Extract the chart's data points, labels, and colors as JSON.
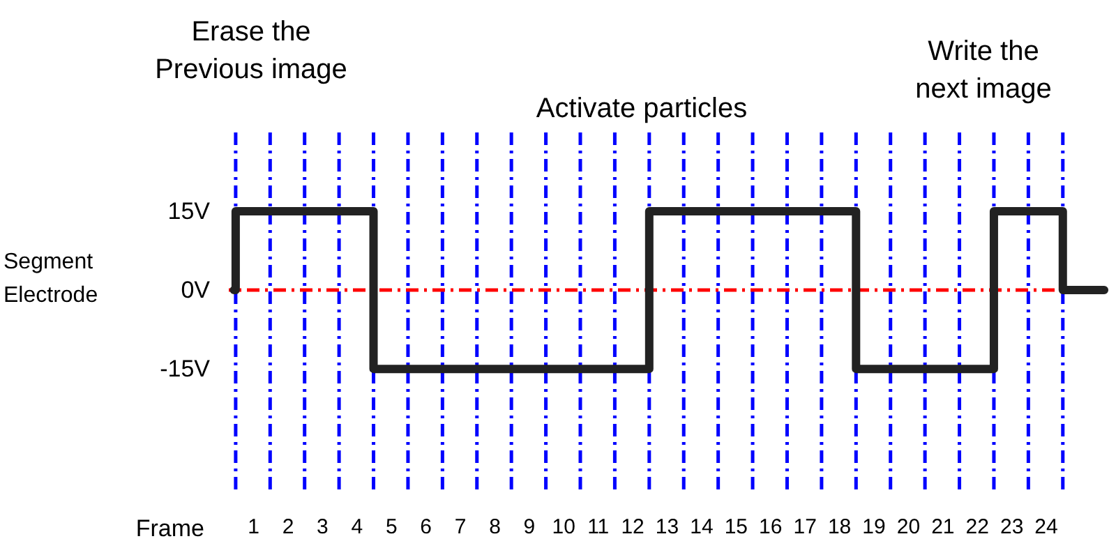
{
  "chart_data": {
    "type": "step",
    "xlabel": "Frame",
    "ylabel": "Segment Electrode",
    "annotations": [
      "Erase the\nPrevious image",
      "Activate particles",
      "Write the\nnext image"
    ],
    "series": [
      {
        "color": "#222222",
        "x": [
          0.45,
          0.5,
          4.5,
          12.5,
          18.5,
          22.5,
          24.5,
          25.7
        ],
        "values": [
          0,
          15,
          -15,
          15,
          -15,
          15,
          0,
          0
        ]
      }
    ],
    "xlim": [
      0.3,
      25.8
    ],
    "xticks": [
      1,
      2,
      3,
      4,
      5,
      6,
      7,
      8,
      9,
      10,
      11,
      12,
      13,
      14,
      15,
      16,
      17,
      18,
      19,
      20,
      21,
      22,
      23,
      24
    ],
    "ylim": [
      -39,
      30
    ],
    "yticks": [
      {
        "value": 15,
        "label": "15V"
      },
      {
        "value": 0,
        "label": "0V"
      },
      {
        "value": -15,
        "label": "-15V"
      }
    ],
    "ref_lines": [
      {
        "axis": "y",
        "value": 0,
        "color": "#ff0000",
        "line_style": "dashed"
      },
      {
        "axis": "x",
        "value": 0.5,
        "color": "#0000ff",
        "line_style": "dashed"
      },
      {
        "axis": "x",
        "value": 1.5,
        "color": "#0000ff",
        "line_style": "dashed"
      },
      {
        "axis": "x",
        "value": 2.5,
        "color": "#0000ff",
        "line_style": "dashed"
      },
      {
        "axis": "x",
        "value": 3.5,
        "color": "#0000ff",
        "line_style": "dashed"
      },
      {
        "axis": "x",
        "value": 4.5,
        "color": "#0000ff",
        "line_style": "dashed"
      },
      {
        "axis": "x",
        "value": 5.5,
        "color": "#0000ff",
        "line_style": "dashed"
      },
      {
        "axis": "x",
        "value": 6.5,
        "color": "#0000ff",
        "line_style": "dashed"
      },
      {
        "axis": "x",
        "value": 7.5,
        "color": "#0000ff",
        "line_style": "dashed"
      },
      {
        "axis": "x",
        "value": 8.5,
        "color": "#0000ff",
        "line_style": "dashed"
      },
      {
        "axis": "x",
        "value": 9.5,
        "color": "#0000ff",
        "line_style": "dashed"
      },
      {
        "axis": "x",
        "value": 10.5,
        "color": "#0000ff",
        "line_style": "dashed"
      },
      {
        "axis": "x",
        "value": 11.5,
        "color": "#0000ff",
        "line_style": "dashed"
      },
      {
        "axis": "x",
        "value": 12.5,
        "color": "#0000ff",
        "line_style": "dashed"
      },
      {
        "axis": "x",
        "value": 13.5,
        "color": "#0000ff",
        "line_style": "dashed"
      },
      {
        "axis": "x",
        "value": 14.5,
        "color": "#0000ff",
        "line_style": "dashed"
      },
      {
        "axis": "x",
        "value": 15.5,
        "color": "#0000ff",
        "line_style": "dashed"
      },
      {
        "axis": "x",
        "value": 16.5,
        "color": "#0000ff",
        "line_style": "dashed"
      },
      {
        "axis": "x",
        "value": 17.5,
        "color": "#0000ff",
        "line_style": "dashed"
      },
      {
        "axis": "x",
        "value": 18.5,
        "color": "#0000ff",
        "line_style": "dashed"
      },
      {
        "axis": "x",
        "value": 19.5,
        "color": "#0000ff",
        "line_style": "dashed"
      },
      {
        "axis": "x",
        "value": 20.5,
        "color": "#0000ff",
        "line_style": "dashed"
      },
      {
        "axis": "x",
        "value": 21.5,
        "color": "#0000ff",
        "line_style": "dashed"
      },
      {
        "axis": "x",
        "value": 22.5,
        "color": "#0000ff",
        "line_style": "dashed"
      },
      {
        "axis": "x",
        "value": 23.5,
        "color": "#0000ff",
        "line_style": "dashed"
      },
      {
        "axis": "x",
        "value": 24.5,
        "color": "#0000ff",
        "line_style": "dashed"
      }
    ],
    "grid": false,
    "line_style": "solid",
    "marker": "none"
  }
}
